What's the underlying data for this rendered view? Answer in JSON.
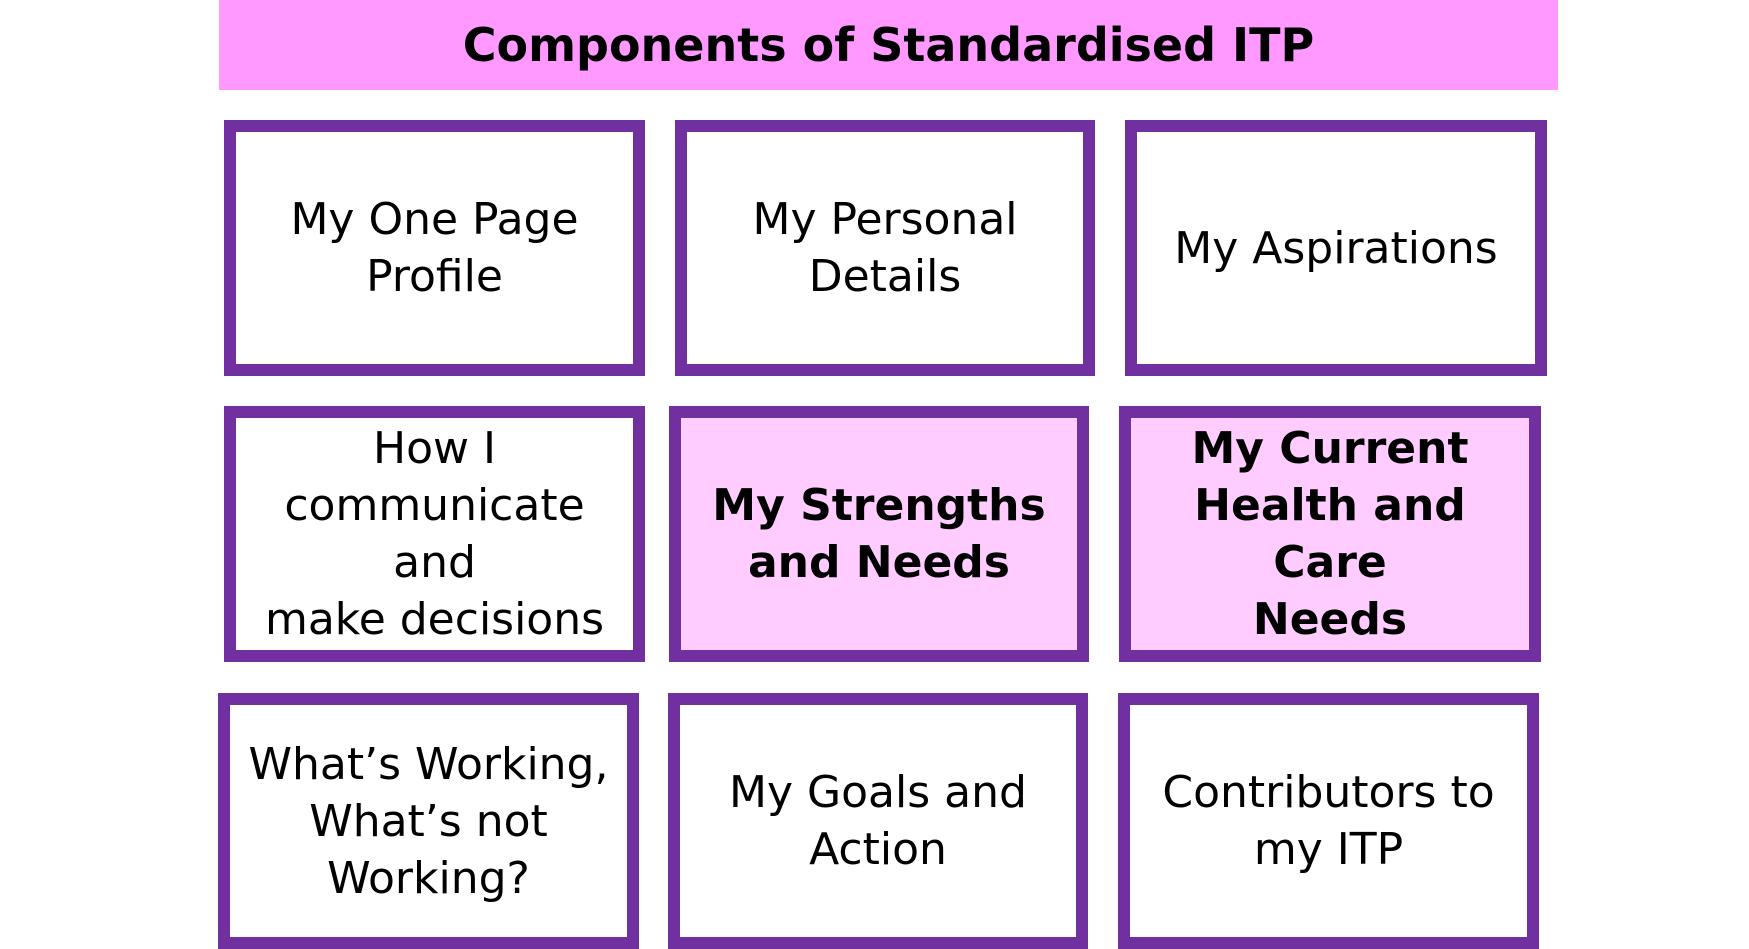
{
  "title": "Components of Standardised ITP",
  "colors": {
    "title_bar": "#ff99ff",
    "border": "#7030a0",
    "highlight_fill": "#ffccff",
    "box_fill": "#ffffff"
  },
  "components": [
    {
      "label": "My One Page\nProfile",
      "highlighted": false
    },
    {
      "label": "My Personal\nDetails",
      "highlighted": false
    },
    {
      "label": "My Aspirations",
      "highlighted": false
    },
    {
      "label": "How I\ncommunicate and\nmake decisions",
      "highlighted": false
    },
    {
      "label": "My Strengths\nand Needs",
      "highlighted": true
    },
    {
      "label": "My Current\nHealth and Care\nNeeds",
      "highlighted": true
    },
    {
      "label": "What’s Working,\nWhat’s not\nWorking?",
      "highlighted": false
    },
    {
      "label": "My Goals and\nAction",
      "highlighted": false
    },
    {
      "label": "Contributors to\nmy ITP",
      "highlighted": false
    }
  ]
}
